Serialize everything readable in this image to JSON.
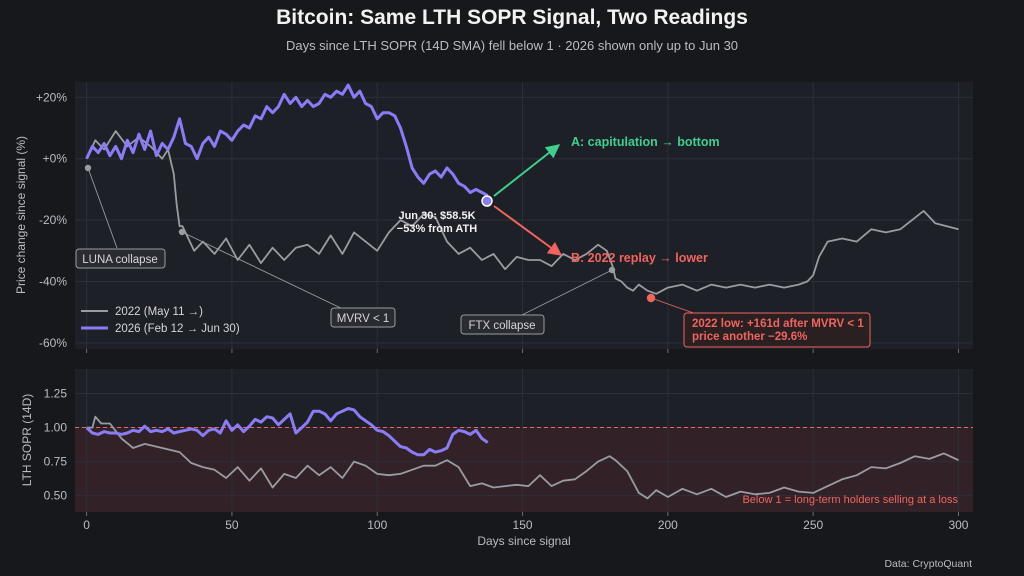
{
  "title": "Bitcoin: Same LTH SOPR Signal, Two Readings",
  "subtitle": "Days since LTH SOPR (14D SMA) fell below 1  ·  2026 shown only up to Jun 30",
  "source": "Data: CryptoQuant",
  "colors": {
    "background": "#17181c",
    "panel": "#1e2027",
    "grid": "#2c2f38",
    "s2022": "#9a9ca2",
    "s2026": "#8a7cf7",
    "green": "#3ecf8e",
    "red": "#f0645f"
  },
  "chart_data": [
    {
      "type": "line",
      "xlabel": "",
      "ylabel": "Price change since signal (%)",
      "xlim": [
        -4,
        305
      ],
      "ylim": [
        -62,
        25
      ],
      "yticks": [
        20,
        0,
        -20,
        -40,
        -60
      ],
      "ytick_labels": [
        "+20%",
        "+0%",
        "-20%",
        "-40%",
        "-60%"
      ],
      "legend": {
        "placement": "lower-left"
      },
      "series": [
        {
          "name": "2022 (May 11 →)",
          "x": [
            0,
            3,
            6,
            10,
            14,
            18,
            22,
            26,
            28,
            30,
            31,
            32,
            33,
            35,
            37,
            40,
            44,
            48,
            52,
            56,
            60,
            64,
            68,
            72,
            76,
            80,
            84,
            88,
            92,
            96,
            100,
            104,
            108,
            112,
            116,
            120,
            124,
            128,
            132,
            136,
            140,
            144,
            148,
            152,
            156,
            160,
            164,
            168,
            172,
            176,
            179,
            181,
            182,
            184,
            186,
            188,
            190,
            193,
            196,
            200,
            205,
            210,
            215,
            220,
            225,
            230,
            235,
            240,
            245,
            248,
            250,
            252,
            255,
            260,
            265,
            270,
            275,
            280,
            284,
            288,
            292,
            296,
            300
          ],
          "values": [
            0,
            6,
            3,
            9,
            4,
            7,
            4,
            0,
            3,
            -5,
            -15,
            -22,
            -22,
            -26,
            -30,
            -27,
            -31,
            -26,
            -33,
            -28,
            -34,
            -29,
            -33,
            -29,
            -28,
            -31,
            -25,
            -31,
            -24,
            -27,
            -30,
            -24,
            -20,
            -22,
            -18,
            -19,
            -27,
            -31,
            -29,
            -33,
            -31,
            -36,
            -32,
            -33,
            -33,
            -35,
            -31,
            -33,
            -31,
            -28,
            -30,
            -35,
            -39,
            -40,
            -42,
            -43,
            -41,
            -43,
            -44,
            -42,
            -41,
            -43,
            -41,
            -42,
            -41,
            -42,
            -41,
            -42,
            -41,
            -40,
            -38,
            -32,
            -27,
            -26,
            -27,
            -23,
            -24,
            -23,
            -20,
            -17,
            -21,
            -22,
            -23
          ]
        },
        {
          "name": "2026 (Feb 12 → Jun 30)",
          "x": [
            0,
            2,
            4,
            6,
            8,
            10,
            12,
            14,
            16,
            18,
            20,
            22,
            24,
            26,
            28,
            30,
            32,
            34,
            36,
            38,
            40,
            42,
            44,
            46,
            48,
            50,
            52,
            54,
            56,
            58,
            60,
            62,
            64,
            66,
            68,
            70,
            72,
            74,
            76,
            78,
            80,
            82,
            84,
            86,
            88,
            90,
            92,
            94,
            96,
            98,
            100,
            102,
            104,
            106,
            108,
            110,
            112,
            114,
            116,
            118,
            120,
            122,
            124,
            126,
            128,
            130,
            132,
            134,
            136,
            138
          ],
          "values": [
            0,
            4,
            2,
            5,
            1,
            4,
            0,
            6,
            2,
            8,
            3,
            9,
            1,
            5,
            3,
            7,
            13,
            5,
            4,
            0,
            5,
            7,
            4,
            9,
            8,
            6,
            9,
            11,
            10,
            14,
            13,
            17,
            15,
            17,
            21,
            18,
            20,
            17,
            19,
            17,
            18,
            21,
            20,
            22,
            21,
            24,
            20,
            22,
            18,
            17,
            13,
            15,
            15,
            14,
            10,
            4,
            -3,
            -6,
            -8,
            -5,
            -4,
            -6,
            -3,
            -5,
            -8,
            -9,
            -11,
            -10,
            -11,
            -12
          ]
        }
      ],
      "markers": [
        {
          "label": "LUNA collapse",
          "x": 0,
          "y": 0
        },
        {
          "label": "MVRV < 1",
          "x": 33,
          "y": -22
        },
        {
          "label": "FTX collapse",
          "x": 182,
          "y": -36
        },
        {
          "label": "Jun 30: $58.5K\n−53% from ATH",
          "x": 138,
          "y": -12
        }
      ],
      "annotations": [
        {
          "text": "A: capitulation → bottom",
          "color": "#3ecf8e"
        },
        {
          "text": "B: 2022 replay → lower",
          "color": "#f0645f"
        },
        {
          "text": "2022 low: +161d after MVRV < 1\nprice another −29.6%",
          "x": 194,
          "y": -45,
          "color": "#f0645f"
        }
      ]
    },
    {
      "type": "line",
      "xlabel": "Days since signal",
      "ylabel": "LTH SOPR (14D)",
      "xlim": [
        -4,
        305
      ],
      "ylim": [
        0.38,
        1.43
      ],
      "xticks": [
        0,
        50,
        100,
        150,
        200,
        250,
        300
      ],
      "yticks": [
        1.25,
        1.0,
        0.75,
        0.5
      ],
      "ytick_labels": [
        "1.25",
        "1.00",
        "0.75",
        "0.50"
      ],
      "reference_line": {
        "y": 1.0,
        "band_below": true,
        "label": "Below 1 = long-term holders selling at a loss"
      },
      "series": [
        {
          "name": "2022 (May 11 →)",
          "x": [
            0,
            2,
            3,
            5,
            8,
            12,
            16,
            20,
            24,
            28,
            32,
            36,
            40,
            44,
            48,
            52,
            56,
            60,
            64,
            68,
            72,
            76,
            80,
            84,
            88,
            92,
            96,
            100,
            104,
            108,
            112,
            116,
            120,
            124,
            128,
            132,
            136,
            140,
            144,
            148,
            152,
            156,
            160,
            164,
            168,
            172,
            176,
            180,
            182,
            186,
            190,
            193,
            196,
            200,
            205,
            210,
            215,
            220,
            225,
            230,
            235,
            240,
            245,
            250,
            255,
            260,
            265,
            270,
            275,
            280,
            285,
            290,
            295,
            298,
            300
          ],
          "values": [
            1.0,
            1.0,
            1.08,
            1.03,
            1.03,
            0.92,
            0.85,
            0.88,
            0.86,
            0.84,
            0.82,
            0.74,
            0.71,
            0.69,
            0.63,
            0.71,
            0.61,
            0.7,
            0.56,
            0.66,
            0.63,
            0.72,
            0.65,
            0.71,
            0.63,
            0.75,
            0.72,
            0.66,
            0.65,
            0.66,
            0.69,
            0.72,
            0.72,
            0.76,
            0.71,
            0.57,
            0.59,
            0.56,
            0.57,
            0.58,
            0.57,
            0.65,
            0.57,
            0.61,
            0.62,
            0.68,
            0.75,
            0.79,
            0.76,
            0.68,
            0.52,
            0.48,
            0.54,
            0.49,
            0.55,
            0.51,
            0.55,
            0.49,
            0.53,
            0.51,
            0.52,
            0.56,
            0.53,
            0.52,
            0.57,
            0.62,
            0.65,
            0.71,
            0.7,
            0.74,
            0.79,
            0.77,
            0.81,
            0.78,
            0.76
          ]
        },
        {
          "name": "2026 (Feb 12 → Jun 30)",
          "x": [
            0,
            2,
            4,
            6,
            8,
            10,
            12,
            14,
            16,
            18,
            20,
            22,
            24,
            26,
            28,
            30,
            32,
            34,
            36,
            38,
            40,
            42,
            44,
            46,
            48,
            50,
            52,
            54,
            56,
            58,
            60,
            62,
            64,
            66,
            68,
            70,
            72,
            74,
            76,
            78,
            80,
            82,
            84,
            86,
            88,
            90,
            92,
            94,
            96,
            98,
            100,
            102,
            104,
            106,
            108,
            110,
            112,
            114,
            116,
            118,
            120,
            122,
            124,
            126,
            128,
            130,
            132,
            134,
            136,
            138
          ],
          "values": [
            1.0,
            0.96,
            0.95,
            0.97,
            0.96,
            0.96,
            0.95,
            0.96,
            0.98,
            0.97,
            1.01,
            0.97,
            0.98,
            0.97,
            0.99,
            0.96,
            0.97,
            0.98,
            0.99,
            0.98,
            0.94,
            0.98,
            0.99,
            0.96,
            1.05,
            0.98,
            1.02,
            0.97,
            1.01,
            1.06,
            1.04,
            1.08,
            1.07,
            1.02,
            1.06,
            1.1,
            0.96,
            1.0,
            1.04,
            1.12,
            1.12,
            1.1,
            1.05,
            1.1,
            1.12,
            1.14,
            1.13,
            1.08,
            1.05,
            1.02,
            0.98,
            0.97,
            0.94,
            0.9,
            0.86,
            0.85,
            0.82,
            0.8,
            0.8,
            0.84,
            0.82,
            0.83,
            0.85,
            0.95,
            0.98,
            0.97,
            0.95,
            0.98,
            0.92,
            0.89
          ]
        }
      ]
    }
  ]
}
